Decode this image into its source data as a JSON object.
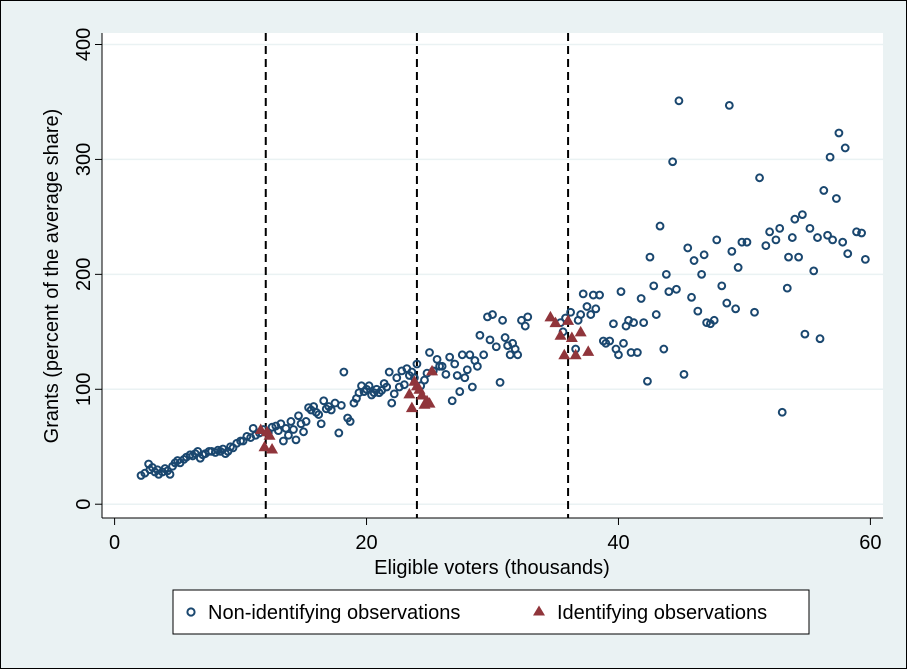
{
  "colors": {
    "background": "#eaf2f3",
    "plot_background": "#ffffff",
    "grid": "#eaf2f3",
    "non_identifying": "#1a476f",
    "identifying": "#90353b",
    "vline": "#000000"
  },
  "chart_data": {
    "type": "scatter",
    "title": "",
    "xlabel": "Eligible voters (thousands)",
    "ylabel": "Grants (percent of the average share)",
    "xlim": [
      -1,
      61
    ],
    "ylim": [
      -12,
      410
    ],
    "x_ticks": [
      0,
      20,
      40,
      60
    ],
    "y_ticks": [
      0,
      100,
      200,
      300,
      400
    ],
    "grid": true,
    "legend_position": "bottom",
    "vertical_lines": [
      12,
      24,
      36
    ],
    "series": [
      {
        "name": "Non-identifying observations",
        "marker": "hollow-circle",
        "color": "#1a476f",
        "points": [
          [
            2.1,
            25
          ],
          [
            2.4,
            27
          ],
          [
            2.7,
            35
          ],
          [
            2.8,
            30
          ],
          [
            3.0,
            32
          ],
          [
            3.2,
            28
          ],
          [
            3.4,
            30
          ],
          [
            3.5,
            26
          ],
          [
            3.8,
            28
          ],
          [
            4.0,
            31
          ],
          [
            4.2,
            29
          ],
          [
            4.4,
            26
          ],
          [
            4.6,
            33
          ],
          [
            4.8,
            36
          ],
          [
            5.0,
            38
          ],
          [
            5.2,
            36
          ],
          [
            5.5,
            39
          ],
          [
            5.7,
            41
          ],
          [
            6.0,
            43
          ],
          [
            6.2,
            42
          ],
          [
            6.4,
            44
          ],
          [
            6.6,
            46
          ],
          [
            6.8,
            40
          ],
          [
            7.0,
            43
          ],
          [
            7.2,
            44
          ],
          [
            7.5,
            46
          ],
          [
            7.7,
            46
          ],
          [
            8.0,
            45
          ],
          [
            8.2,
            47
          ],
          [
            8.4,
            46
          ],
          [
            8.6,
            48
          ],
          [
            8.8,
            44
          ],
          [
            9.0,
            46
          ],
          [
            9.2,
            50
          ],
          [
            9.4,
            49
          ],
          [
            9.7,
            53
          ],
          [
            10.0,
            55
          ],
          [
            10.2,
            55
          ],
          [
            10.5,
            59
          ],
          [
            10.8,
            58
          ],
          [
            11.0,
            66
          ],
          [
            11.2,
            60
          ],
          [
            11.5,
            62
          ],
          [
            11.8,
            65
          ],
          [
            12.2,
            62
          ],
          [
            12.5,
            67
          ],
          [
            12.8,
            68
          ],
          [
            13.0,
            64
          ],
          [
            13.2,
            70
          ],
          [
            13.4,
            55
          ],
          [
            13.6,
            66
          ],
          [
            13.8,
            60
          ],
          [
            14.0,
            72
          ],
          [
            14.2,
            65
          ],
          [
            14.4,
            56
          ],
          [
            14.6,
            77
          ],
          [
            14.8,
            70
          ],
          [
            15.0,
            63
          ],
          [
            15.2,
            72
          ],
          [
            15.4,
            84
          ],
          [
            15.6,
            82
          ],
          [
            15.8,
            85
          ],
          [
            16.0,
            80
          ],
          [
            16.2,
            78
          ],
          [
            16.4,
            70
          ],
          [
            16.6,
            90
          ],
          [
            16.8,
            83
          ],
          [
            17.0,
            85
          ],
          [
            17.2,
            82
          ],
          [
            17.5,
            88
          ],
          [
            17.8,
            62
          ],
          [
            18.0,
            86
          ],
          [
            18.2,
            115
          ],
          [
            18.5,
            75
          ],
          [
            18.7,
            72
          ],
          [
            19.0,
            88
          ],
          [
            19.2,
            92
          ],
          [
            19.4,
            97
          ],
          [
            19.6,
            103
          ],
          [
            19.8,
            98
          ],
          [
            20.0,
            100
          ],
          [
            20.2,
            103
          ],
          [
            20.4,
            95
          ],
          [
            20.6,
            97
          ],
          [
            20.8,
            100
          ],
          [
            21.0,
            97
          ],
          [
            21.2,
            99
          ],
          [
            21.4,
            105
          ],
          [
            21.6,
            102
          ],
          [
            21.8,
            115
          ],
          [
            22.0,
            88
          ],
          [
            22.2,
            96
          ],
          [
            22.4,
            110
          ],
          [
            22.6,
            102
          ],
          [
            22.8,
            116
          ],
          [
            23.0,
            104
          ],
          [
            23.2,
            118
          ],
          [
            23.4,
            112
          ],
          [
            23.6,
            115
          ],
          [
            23.8,
            110
          ],
          [
            24.0,
            122
          ],
          [
            24.3,
            103
          ],
          [
            24.6,
            108
          ],
          [
            24.8,
            114
          ],
          [
            25.0,
            132
          ],
          [
            25.3,
            116
          ],
          [
            25.6,
            126
          ],
          [
            25.8,
            120
          ],
          [
            26.0,
            120
          ],
          [
            26.3,
            113
          ],
          [
            26.6,
            128
          ],
          [
            26.8,
            90
          ],
          [
            27.0,
            122
          ],
          [
            27.2,
            112
          ],
          [
            27.4,
            98
          ],
          [
            27.6,
            130
          ],
          [
            27.8,
            110
          ],
          [
            28.0,
            117
          ],
          [
            28.2,
            130
          ],
          [
            28.4,
            102
          ],
          [
            28.6,
            125
          ],
          [
            28.8,
            120
          ],
          [
            29.0,
            147
          ],
          [
            29.3,
            130
          ],
          [
            29.6,
            163
          ],
          [
            29.8,
            143
          ],
          [
            30.0,
            165
          ],
          [
            30.3,
            137
          ],
          [
            30.6,
            106
          ],
          [
            30.8,
            160
          ],
          [
            31.0,
            145
          ],
          [
            31.2,
            138
          ],
          [
            31.4,
            130
          ],
          [
            31.6,
            140
          ],
          [
            31.8,
            135
          ],
          [
            32.0,
            130
          ],
          [
            32.3,
            160
          ],
          [
            32.6,
            155
          ],
          [
            32.8,
            163
          ],
          [
            35.4,
            158
          ],
          [
            35.6,
            150
          ],
          [
            35.8,
            162
          ],
          [
            36.2,
            167
          ],
          [
            36.6,
            135
          ],
          [
            36.8,
            160
          ],
          [
            37.0,
            165
          ],
          [
            37.2,
            183
          ],
          [
            37.5,
            172
          ],
          [
            37.8,
            165
          ],
          [
            38.0,
            182
          ],
          [
            38.2,
            170
          ],
          [
            38.5,
            182
          ],
          [
            38.8,
            142
          ],
          [
            39.0,
            140
          ],
          [
            39.3,
            142
          ],
          [
            39.6,
            157
          ],
          [
            39.8,
            135
          ],
          [
            40.0,
            130
          ],
          [
            40.2,
            185
          ],
          [
            40.4,
            140
          ],
          [
            40.6,
            155
          ],
          [
            40.8,
            160
          ],
          [
            41.0,
            132
          ],
          [
            41.2,
            158
          ],
          [
            41.5,
            132
          ],
          [
            41.8,
            179
          ],
          [
            42.0,
            158
          ],
          [
            42.3,
            107
          ],
          [
            42.5,
            215
          ],
          [
            42.8,
            190
          ],
          [
            43.0,
            165
          ],
          [
            43.3,
            242
          ],
          [
            43.6,
            135
          ],
          [
            43.8,
            200
          ],
          [
            44.0,
            185
          ],
          [
            44.3,
            298
          ],
          [
            44.6,
            187
          ],
          [
            44.8,
            351
          ],
          [
            45.2,
            113
          ],
          [
            45.5,
            223
          ],
          [
            45.8,
            180
          ],
          [
            46.0,
            212
          ],
          [
            46.3,
            168
          ],
          [
            46.6,
            200
          ],
          [
            46.8,
            217
          ],
          [
            47.0,
            158
          ],
          [
            47.3,
            157
          ],
          [
            47.6,
            160
          ],
          [
            47.8,
            230
          ],
          [
            48.2,
            190
          ],
          [
            48.6,
            175
          ],
          [
            48.8,
            347
          ],
          [
            49.0,
            220
          ],
          [
            49.3,
            170
          ],
          [
            49.5,
            206
          ],
          [
            49.8,
            228
          ],
          [
            50.2,
            228
          ],
          [
            50.8,
            167
          ],
          [
            51.2,
            284
          ],
          [
            51.7,
            225
          ],
          [
            52.0,
            237
          ],
          [
            52.5,
            230
          ],
          [
            52.8,
            240
          ],
          [
            53.0,
            80
          ],
          [
            53.4,
            188
          ],
          [
            53.5,
            215
          ],
          [
            53.8,
            232
          ],
          [
            54.0,
            248
          ],
          [
            54.3,
            215
          ],
          [
            54.6,
            252
          ],
          [
            54.8,
            148
          ],
          [
            55.2,
            240
          ],
          [
            55.5,
            203
          ],
          [
            55.8,
            232
          ],
          [
            56.0,
            144
          ],
          [
            56.3,
            273
          ],
          [
            56.6,
            234
          ],
          [
            56.8,
            302
          ],
          [
            57.0,
            230
          ],
          [
            57.3,
            266
          ],
          [
            57.5,
            323
          ],
          [
            57.8,
            228
          ],
          [
            58.0,
            310
          ],
          [
            58.2,
            218
          ],
          [
            58.9,
            237
          ],
          [
            59.3,
            236
          ],
          [
            59.6,
            213
          ]
        ]
      },
      {
        "name": "Identifying observations",
        "marker": "filled-triangle",
        "color": "#90353b",
        "points": [
          [
            11.6,
            65
          ],
          [
            11.9,
            50
          ],
          [
            12.1,
            63
          ],
          [
            12.3,
            60
          ],
          [
            12.5,
            48
          ],
          [
            23.4,
            96
          ],
          [
            23.6,
            84
          ],
          [
            23.8,
            107
          ],
          [
            24.0,
            103
          ],
          [
            24.2,
            100
          ],
          [
            24.4,
            95
          ],
          [
            24.6,
            87
          ],
          [
            24.8,
            90
          ],
          [
            25.0,
            88
          ],
          [
            25.2,
            116
          ],
          [
            34.6,
            163
          ],
          [
            35.0,
            158
          ],
          [
            35.4,
            147
          ],
          [
            35.7,
            130
          ],
          [
            36.0,
            160
          ],
          [
            36.3,
            145
          ],
          [
            36.6,
            130
          ],
          [
            37.0,
            150
          ],
          [
            37.6,
            133
          ]
        ]
      }
    ]
  }
}
